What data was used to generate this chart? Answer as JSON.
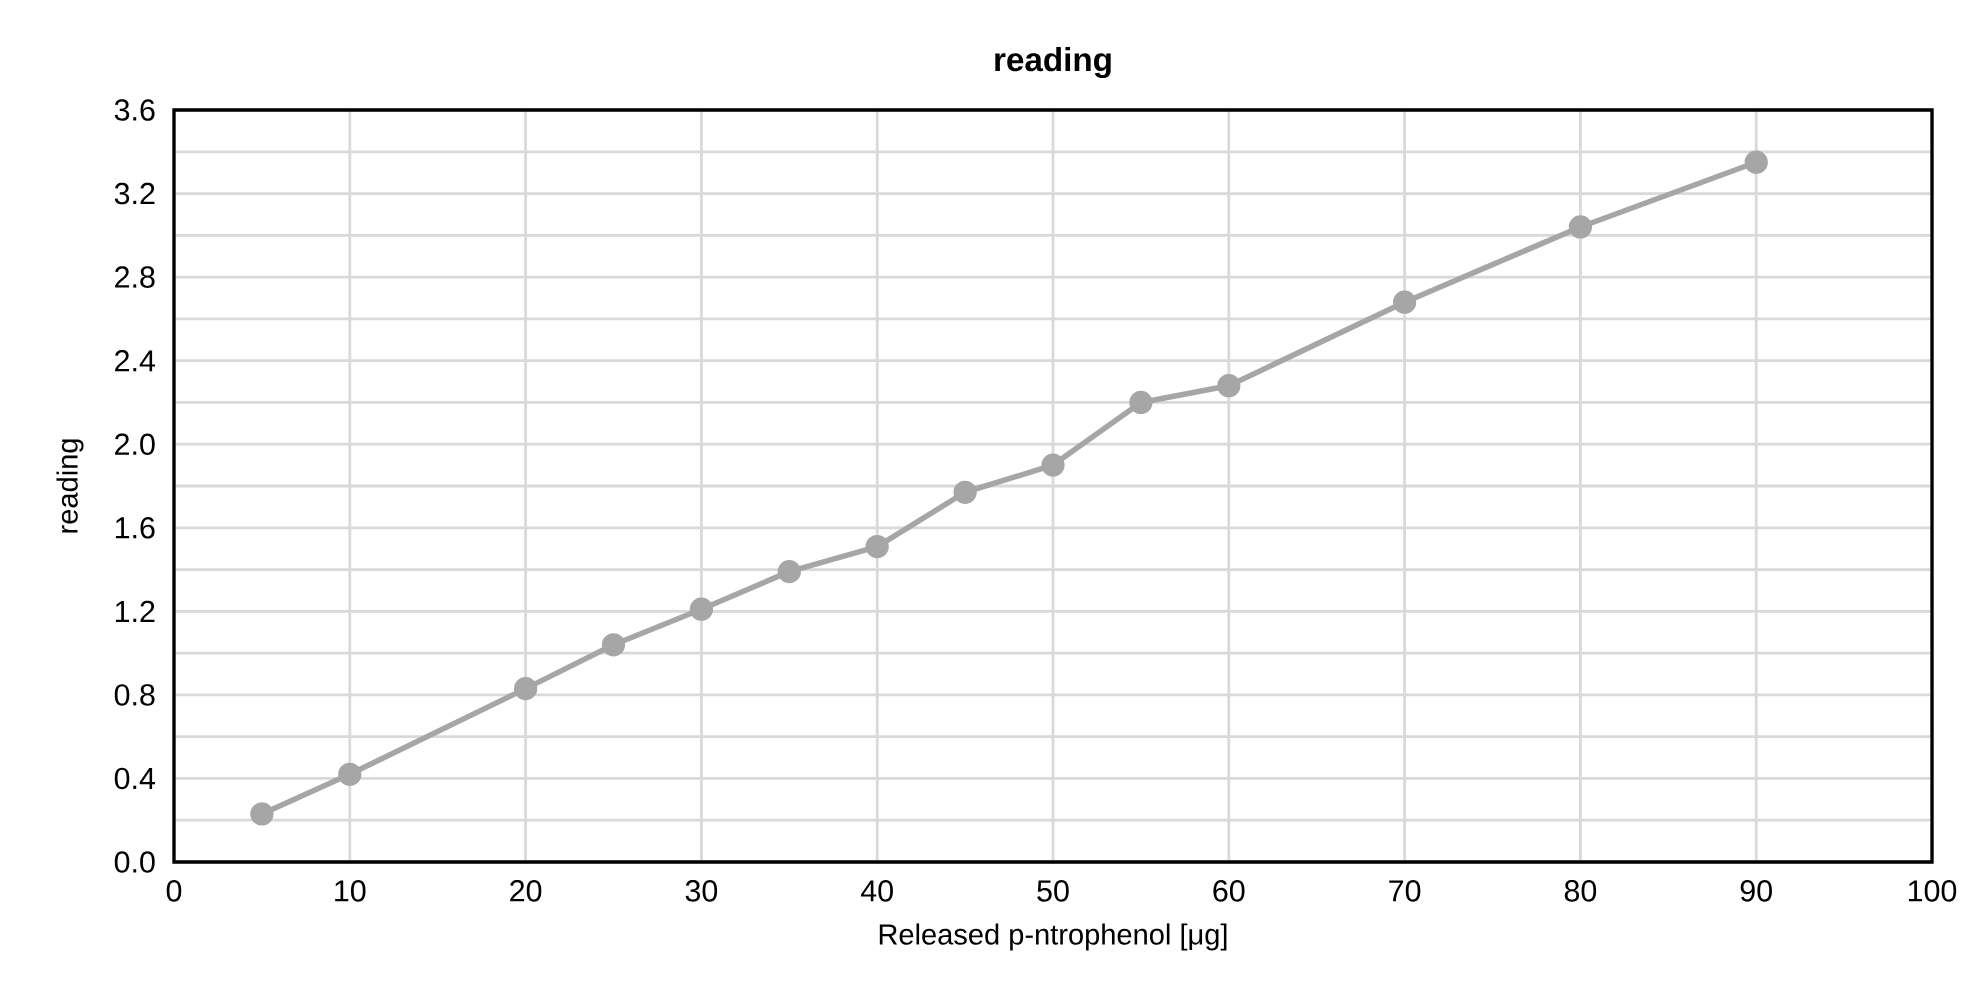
{
  "chart_data": {
    "type": "line",
    "title": "reading",
    "xlabel": "Released p-ntrophenol [μg]",
    "ylabel": "reading",
    "x": [
      5,
      10,
      20,
      25,
      30,
      35,
      40,
      45,
      50,
      55,
      60,
      70,
      80,
      90
    ],
    "series": [
      {
        "color": "#a6a6a6",
        "values": [
          0.23,
          0.42,
          0.83,
          1.04,
          1.21,
          1.39,
          1.51,
          1.77,
          1.9,
          2.2,
          2.28,
          2.68,
          3.04,
          3.35
        ]
      }
    ],
    "xlim": [
      0,
      100
    ],
    "xticks": [
      0,
      10,
      20,
      30,
      40,
      50,
      60,
      70,
      80,
      90,
      100
    ],
    "ylim": [
      0,
      3.6
    ],
    "yticks": [
      {
        "value": 0,
        "label": "0.0"
      },
      {
        "value": 0.2,
        "label": null
      },
      {
        "value": 0.4,
        "label": "0.4"
      },
      {
        "value": 0.6,
        "label": null
      },
      {
        "value": 0.8,
        "label": "0.8"
      },
      {
        "value": 1.0,
        "label": null
      },
      {
        "value": 1.2,
        "label": "1.2"
      },
      {
        "value": 1.4,
        "label": null
      },
      {
        "value": 1.6,
        "label": "1.6"
      },
      {
        "value": 1.8,
        "label": null
      },
      {
        "value": 2.0,
        "label": "2.0"
      },
      {
        "value": 2.2,
        "label": null
      },
      {
        "value": 2.4,
        "label": "2.4"
      },
      {
        "value": 2.6,
        "label": null
      },
      {
        "value": 2.8,
        "label": "2.8"
      },
      {
        "value": 3.0,
        "label": null
      },
      {
        "value": 3.2,
        "label": "3.2"
      },
      {
        "value": 3.4,
        "label": null
      },
      {
        "value": 3.6,
        "label": "3.6"
      }
    ],
    "grid": true,
    "marker": "circle",
    "line_style": "solid"
  }
}
